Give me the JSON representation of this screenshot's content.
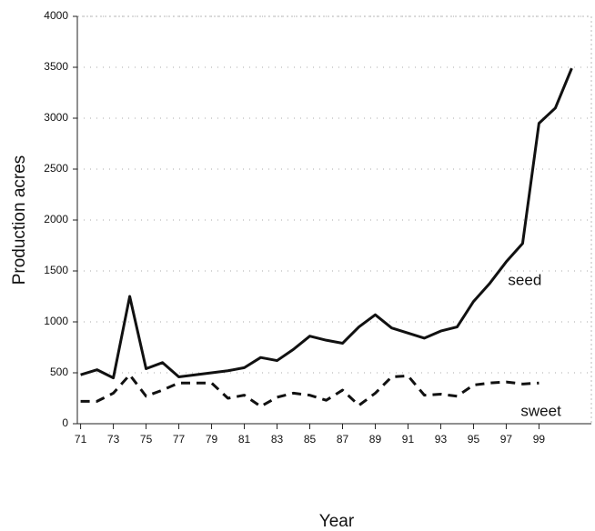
{
  "chart_data": {
    "type": "line",
    "xlabel": "Year",
    "ylabel": "Production acres",
    "x": [
      71,
      72,
      73,
      74,
      75,
      76,
      77,
      78,
      79,
      80,
      81,
      82,
      83,
      84,
      85,
      86,
      87,
      88,
      89,
      90,
      91,
      92,
      93,
      94,
      95,
      96,
      97,
      98,
      99,
      100,
      101
    ],
    "series": [
      {
        "name": "seed",
        "color": "#111111",
        "dash": "solid",
        "values": [
          480,
          530,
          450,
          1250,
          540,
          600,
          460,
          480,
          500,
          520,
          550,
          650,
          620,
          730,
          860,
          820,
          790,
          950,
          1070,
          940,
          890,
          840,
          910,
          950,
          1200,
          1380,
          1590,
          1770,
          2950,
          3100,
          3490
        ]
      },
      {
        "name": "sweet",
        "color": "#111111",
        "dash": "dashed",
        "values": [
          220,
          220,
          300,
          480,
          270,
          330,
          400,
          400,
          400,
          250,
          280,
          170,
          260,
          300,
          280,
          230,
          330,
          180,
          300,
          460,
          470,
          280,
          290,
          270,
          380,
          400,
          410,
          390,
          400,
          null,
          null
        ]
      }
    ],
    "xlim": [
      70.8,
      102.2
    ],
    "xticks": [
      71,
      73,
      75,
      77,
      79,
      81,
      83,
      85,
      87,
      89,
      91,
      93,
      95,
      97,
      99
    ],
    "ylim": [
      0,
      4000
    ],
    "yticks": [
      0,
      500,
      1000,
      1500,
      2000,
      2500,
      3000,
      3500,
      4000
    ],
    "grid": true
  }
}
